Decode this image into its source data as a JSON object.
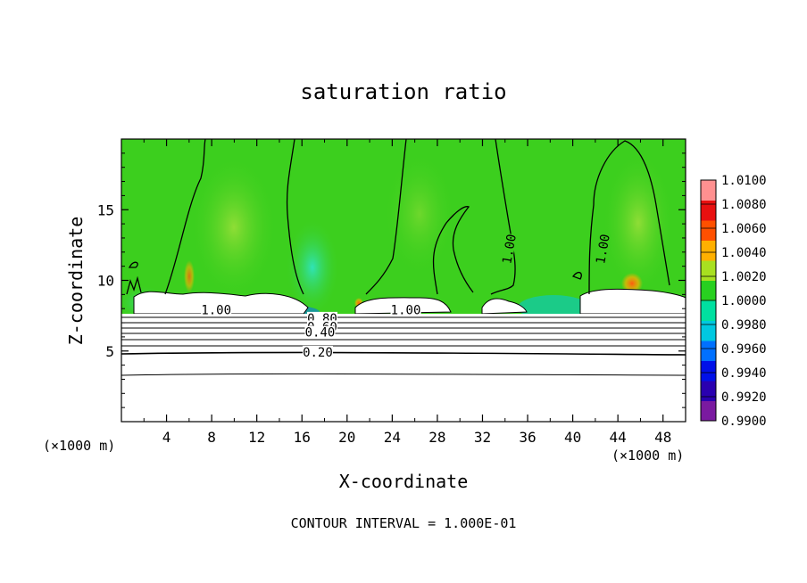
{
  "chart_data": {
    "type": "heatmap",
    "title": "saturation ratio",
    "xlabel": "X-coordinate",
    "ylabel": "Z-coordinate",
    "x_unit": "(×1000 m)",
    "y_unit": "(×1000 m)",
    "xlim": [
      0,
      50
    ],
    "ylim": [
      0,
      20
    ],
    "x_ticks": [
      4,
      8,
      12,
      16,
      20,
      24,
      28,
      32,
      36,
      40,
      44,
      48
    ],
    "y_ticks": [
      5,
      10,
      15
    ],
    "footer": "CONTOUR INTERVAL = 1.000E-01",
    "colorbar": {
      "min": 0.99,
      "max": 1.01,
      "labels": [
        "1.0100",
        "1.0080",
        "1.0060",
        "1.0040",
        "1.0020",
        "1.0000",
        "0.9980",
        "0.9960",
        "0.9940",
        "0.9920",
        "0.9900"
      ],
      "colors": [
        "#7a1aa0",
        "#2a00b0",
        "#0010e8",
        "#0070ff",
        "#00c8e0",
        "#00e0a0",
        "#28d020",
        "#a8e020",
        "#ffb000",
        "#ff5000",
        "#e81010",
        "#ff9090"
      ]
    },
    "contour_labels": [
      {
        "text": "1.00",
        "x": 8.4,
        "z": 7.8
      },
      {
        "text": "1.00",
        "x": 25.2,
        "z": 7.8
      },
      {
        "text": "0.80",
        "x": 17.8,
        "z": 7.2
      },
      {
        "text": "0.60",
        "x": 17.8,
        "z": 6.6
      },
      {
        "text": "0.40",
        "x": 17.6,
        "z": 6.2
      },
      {
        "text": "0.20",
        "x": 17.4,
        "z": 4.8
      },
      {
        "text": "1.00",
        "x": 34.5,
        "z": 12.2
      },
      {
        "text": "1.00",
        "x": 42.8,
        "z": 12.2
      }
    ]
  }
}
